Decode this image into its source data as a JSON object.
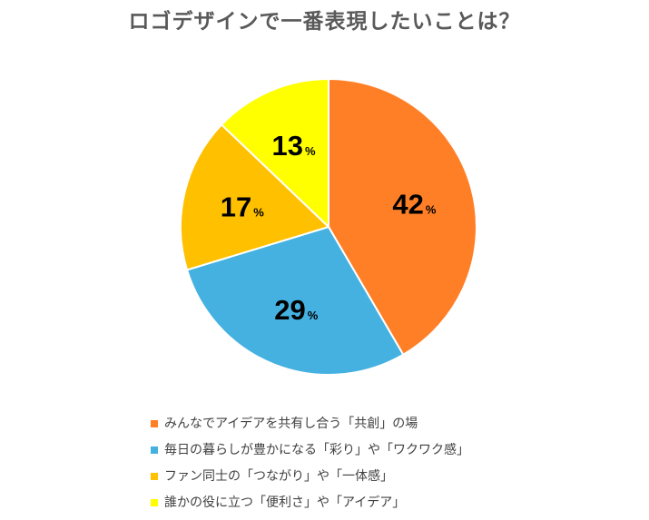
{
  "chart_data": {
    "type": "pie",
    "title": "ロゴデザインで一番表現したいことは？",
    "unit": "%",
    "slices": [
      {
        "label": "みんなでアイデアを共有し合う「共創」の場",
        "value": 42,
        "color": "#FF7F27"
      },
      {
        "label": "毎日の暮らしが豊かになる「彩り」や「ワクワク感」",
        "value": 29,
        "color": "#45B1E1"
      },
      {
        "label": "ファン同士の「つながり」や「一体感」",
        "value": 17,
        "color": "#FFC000"
      },
      {
        "label": "誰かの役に立つ「便利さ」や「アイデア」",
        "value": 13,
        "color": "#FFFF00"
      }
    ],
    "legend_position": "bottom",
    "start_angle": "12 o'clock",
    "direction": "clockwise"
  }
}
